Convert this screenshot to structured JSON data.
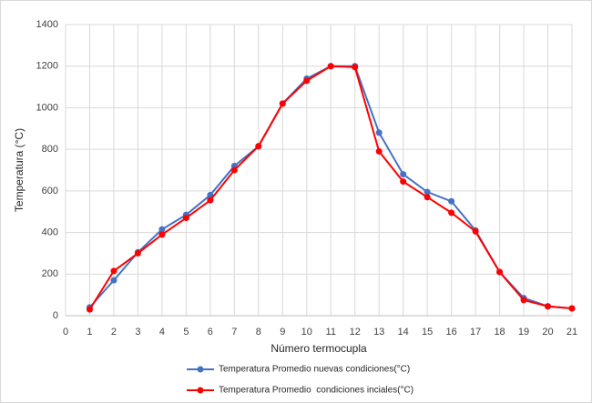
{
  "chart_data": {
    "type": "line",
    "x_label": "Número termocupla",
    "y_label": "Temperatura (°C)",
    "xlim": [
      0,
      21
    ],
    "xticks": [
      0,
      1,
      2,
      3,
      4,
      5,
      6,
      7,
      8,
      9,
      10,
      11,
      12,
      13,
      14,
      15,
      16,
      17,
      18,
      19,
      20,
      21
    ],
    "ylim": [
      0,
      1400
    ],
    "yticks": [
      0,
      200,
      400,
      600,
      800,
      1000,
      1200,
      1400
    ],
    "grid": true,
    "legend": "bottom",
    "x": [
      1,
      2,
      3,
      4,
      5,
      6,
      7,
      8,
      9,
      10,
      11,
      12,
      13,
      14,
      15,
      16,
      17,
      18,
      19,
      20,
      21
    ],
    "series": [
      {
        "name": "Temperatura Promedio nuevas condiciones(°C)",
        "color": "#4472c4",
        "values": [
          40,
          170,
          305,
          415,
          485,
          580,
          720,
          815,
          1020,
          1140,
          1200,
          1200,
          880,
          680,
          595,
          550,
          410,
          210,
          85,
          45,
          35
        ]
      },
      {
        "name": "Temperatura Promedio  condiciones inciales(°C)",
        "color": "#ff0000",
        "values": [
          30,
          215,
          300,
          390,
          470,
          555,
          700,
          815,
          1020,
          1130,
          1200,
          1195,
          790,
          645,
          570,
          495,
          405,
          210,
          75,
          45,
          35
        ]
      }
    ]
  }
}
